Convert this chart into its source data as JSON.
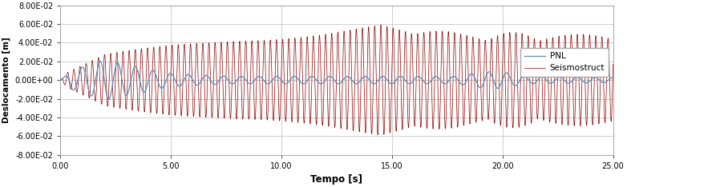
{
  "title": "",
  "xlabel": "Tempo [s]",
  "ylabel": "Deslocamento [m]",
  "xlim": [
    0,
    25
  ],
  "ylim": [
    -0.08,
    0.08
  ],
  "yticks": [
    -0.08,
    -0.06,
    -0.04,
    -0.02,
    0.0,
    0.02,
    0.04,
    0.06,
    0.08
  ],
  "ytick_labels": [
    "-8.00E-02",
    "-6.00E-02",
    "-4.00E-02",
    "-2.00E-02",
    "0.00E+00",
    "2.00E-02",
    "4.00E-02",
    "6.00E-02",
    "8.00E-02"
  ],
  "xticks": [
    0,
    5,
    10,
    15,
    20,
    25
  ],
  "xtick_labels": [
    "0.00",
    "5.00",
    "10.00",
    "15.00",
    "20.00",
    "25.00"
  ],
  "pnl_color": "#5B8DB8",
  "seismostruct_color": "#8B0000",
  "legend_labels": [
    "PNL",
    "Seismostruct"
  ],
  "background_color": "#FFFFFF",
  "grid_color": "#BEBEBE",
  "figsize": [
    8.98,
    2.34
  ],
  "dpi": 100
}
